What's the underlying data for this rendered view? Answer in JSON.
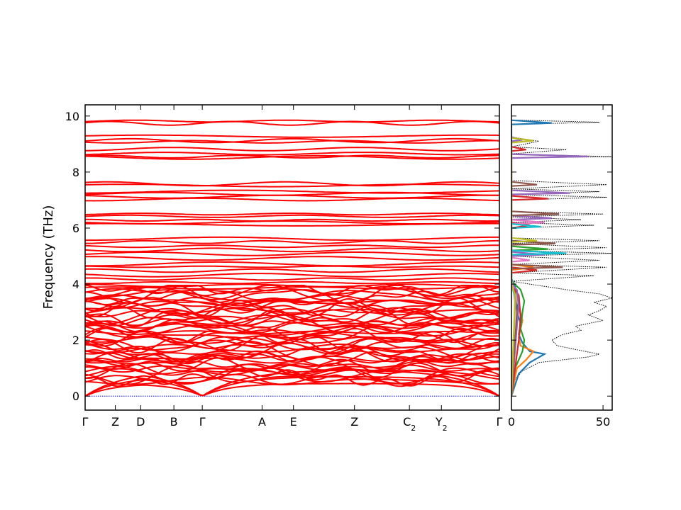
{
  "chart_data": [
    {
      "type": "line",
      "name": "phonon-band-structure",
      "ylabel": "Frequency (THz)",
      "xlabel": "",
      "ylim": [
        -0.5,
        10.4
      ],
      "yticks": [
        0,
        2,
        4,
        6,
        8,
        10
      ],
      "kpath": [
        {
          "label": "Γ",
          "sub": "",
          "x": 0.0
        },
        {
          "label": "Z",
          "sub": "",
          "x": 0.5
        },
        {
          "label": "D",
          "sub": "",
          "x": 0.92
        },
        {
          "label": "B",
          "sub": "",
          "x": 1.47
        },
        {
          "label": "Γ",
          "sub": "",
          "x": 1.94
        },
        {
          "label": "A",
          "sub": "",
          "x": 2.93
        },
        {
          "label": "E",
          "sub": "",
          "x": 3.45
        },
        {
          "label": "Z",
          "sub": "",
          "x": 4.46
        },
        {
          "label": "C",
          "sub": "2",
          "x": 5.37
        },
        {
          "label": "Y",
          "sub": "2",
          "x": 5.9
        },
        {
          "label": "Γ",
          "sub": "",
          "x": 6.86
        }
      ],
      "band_color": "#ff0000",
      "zero_line_color": "#0000ff",
      "flat_bands_thz": [
        9.82,
        9.74,
        9.28,
        9.12,
        9.08,
        8.82,
        8.66,
        8.55,
        8.52,
        7.58,
        7.52,
        7.3,
        7.22,
        7.12,
        7.02,
        6.5,
        6.42,
        6.28,
        6.2,
        6.12,
        5.62,
        5.5,
        5.35,
        5.22,
        5.08,
        4.92,
        4.72,
        4.62,
        4.48,
        4.32,
        4.18,
        4.05,
        3.95,
        3.86
      ],
      "dense_band_range_thz": [
        0.5,
        3.85
      ],
      "acoustic_branches": 3
    },
    {
      "type": "line",
      "name": "phonon-dos",
      "xlabel": "",
      "xlim": [
        0,
        55
      ],
      "xticks": [
        0,
        50
      ],
      "ylim": [
        -0.5,
        10.4
      ],
      "total_dos_style": "dotted-black",
      "total_dos": [
        [
          0.0,
          0
        ],
        [
          0.3,
          0.5
        ],
        [
          0.6,
          2
        ],
        [
          0.9,
          6
        ],
        [
          1.2,
          15
        ],
        [
          1.4,
          42
        ],
        [
          1.5,
          48
        ],
        [
          1.6,
          40
        ],
        [
          1.8,
          25
        ],
        [
          2.0,
          22
        ],
        [
          2.2,
          28
        ],
        [
          2.35,
          38
        ],
        [
          2.5,
          35
        ],
        [
          2.7,
          50
        ],
        [
          2.9,
          42
        ],
        [
          3.05,
          48
        ],
        [
          3.2,
          52
        ],
        [
          3.35,
          45
        ],
        [
          3.5,
          55
        ],
        [
          3.65,
          48
        ],
        [
          3.8,
          30
        ],
        [
          3.9,
          20
        ],
        [
          4.0,
          10
        ],
        [
          4.1,
          0
        ],
        [
          4.3,
          45
        ],
        [
          4.4,
          0
        ],
        [
          4.6,
          52
        ],
        [
          4.7,
          0
        ],
        [
          4.85,
          48
        ],
        [
          5.0,
          0
        ],
        [
          5.1,
          55
        ],
        [
          5.2,
          0
        ],
        [
          5.3,
          52
        ],
        [
          5.45,
          0
        ],
        [
          5.55,
          48
        ],
        [
          5.65,
          0
        ],
        [
          6.0,
          0
        ],
        [
          6.1,
          45
        ],
        [
          6.2,
          0
        ],
        [
          6.3,
          38
        ],
        [
          6.4,
          0
        ],
        [
          6.5,
          50
        ],
        [
          6.6,
          0
        ],
        [
          7.0,
          0
        ],
        [
          7.1,
          52
        ],
        [
          7.2,
          0
        ],
        [
          7.3,
          48
        ],
        [
          7.4,
          0
        ],
        [
          7.55,
          52
        ],
        [
          7.7,
          0
        ],
        [
          8.5,
          0
        ],
        [
          8.55,
          55
        ],
        [
          8.65,
          0
        ],
        [
          8.8,
          30
        ],
        [
          8.9,
          0
        ],
        [
          9.1,
          15
        ],
        [
          9.25,
          0
        ],
        [
          9.7,
          0
        ],
        [
          9.78,
          48
        ],
        [
          9.86,
          0
        ],
        [
          10.4,
          0
        ]
      ],
      "projections": [
        {
          "color": "#1f77b4",
          "points": [
            [
              0.0,
              0
            ],
            [
              0.8,
              4
            ],
            [
              1.2,
              10
            ],
            [
              1.5,
              18
            ],
            [
              1.6,
              10
            ],
            [
              1.9,
              6
            ],
            [
              2.2,
              4
            ],
            [
              2.6,
              5
            ],
            [
              3.0,
              3
            ],
            [
              3.5,
              4
            ],
            [
              3.9,
              2
            ],
            [
              4.2,
              0
            ],
            [
              9.7,
              0
            ],
            [
              9.75,
              22
            ],
            [
              9.85,
              0
            ]
          ]
        },
        {
          "color": "#ff7f0e",
          "points": [
            [
              0.0,
              0
            ],
            [
              1.0,
              3
            ],
            [
              1.3,
              8
            ],
            [
              1.6,
              12
            ],
            [
              1.8,
              5
            ],
            [
              2.1,
              4
            ],
            [
              2.7,
              6
            ],
            [
              3.2,
              4
            ],
            [
              3.7,
              3
            ],
            [
              4.0,
              0
            ],
            [
              4.5,
              0
            ],
            [
              4.6,
              12
            ],
            [
              4.7,
              0
            ]
          ]
        },
        {
          "color": "#2ca02c",
          "points": [
            [
              0.0,
              0
            ],
            [
              1.0,
              2
            ],
            [
              1.6,
              6
            ],
            [
              2.0,
              7
            ],
            [
              2.4,
              5
            ],
            [
              3.0,
              6
            ],
            [
              3.4,
              7
            ],
            [
              3.8,
              5
            ],
            [
              4.1,
              0
            ],
            [
              5.2,
              0
            ],
            [
              5.25,
              20
            ],
            [
              5.35,
              0
            ]
          ]
        },
        {
          "color": "#d62728",
          "points": [
            [
              0.0,
              0
            ],
            [
              1.5,
              3
            ],
            [
              2.0,
              4
            ],
            [
              2.8,
              5
            ],
            [
              3.6,
              4
            ],
            [
              4.0,
              0
            ],
            [
              4.4,
              0
            ],
            [
              4.5,
              14
            ],
            [
              4.6,
              0
            ],
            [
              6.0,
              0
            ],
            [
              6.1,
              10
            ],
            [
              6.2,
              0
            ],
            [
              7.0,
              0
            ],
            [
              7.05,
              20
            ],
            [
              7.15,
              0
            ],
            [
              8.75,
              0
            ],
            [
              8.8,
              8
            ],
            [
              8.9,
              0
            ]
          ]
        },
        {
          "color": "#9467bd",
          "points": [
            [
              0.0,
              0
            ],
            [
              2.5,
              3
            ],
            [
              3.2,
              4
            ],
            [
              3.8,
              3
            ],
            [
              4.0,
              0
            ],
            [
              5.0,
              0
            ],
            [
              5.05,
              18
            ],
            [
              5.15,
              0
            ],
            [
              6.3,
              0
            ],
            [
              6.35,
              22
            ],
            [
              6.45,
              0
            ],
            [
              7.2,
              0
            ],
            [
              7.25,
              32
            ],
            [
              7.35,
              0
            ],
            [
              8.5,
              0
            ],
            [
              8.56,
              42
            ],
            [
              8.64,
              0
            ],
            [
              9.1,
              0
            ],
            [
              9.15,
              6
            ],
            [
              9.25,
              0
            ]
          ]
        },
        {
          "color": "#8c564b",
          "points": [
            [
              0.0,
              0
            ],
            [
              3.0,
              3
            ],
            [
              3.7,
              2
            ],
            [
              4.0,
              0
            ],
            [
              4.55,
              0
            ],
            [
              4.6,
              28
            ],
            [
              4.7,
              0
            ],
            [
              5.4,
              0
            ],
            [
              5.45,
              24
            ],
            [
              5.55,
              0
            ],
            [
              6.45,
              0
            ],
            [
              6.5,
              26
            ],
            [
              6.6,
              0
            ],
            [
              7.5,
              0
            ],
            [
              7.55,
              14
            ],
            [
              7.65,
              0
            ]
          ]
        },
        {
          "color": "#e377c2",
          "points": [
            [
              0.0,
              0
            ],
            [
              3.3,
              2
            ],
            [
              3.9,
              1
            ],
            [
              4.1,
              0
            ],
            [
              4.8,
              0
            ],
            [
              4.85,
              10
            ],
            [
              4.95,
              0
            ],
            [
              6.15,
              0
            ],
            [
              6.2,
              18
            ],
            [
              6.3,
              0
            ]
          ]
        },
        {
          "color": "#17becf",
          "points": [
            [
              0.0,
              0
            ],
            [
              3.5,
              2
            ],
            [
              4.0,
              0
            ],
            [
              5.05,
              0
            ],
            [
              5.1,
              30
            ],
            [
              5.2,
              0
            ],
            [
              6.0,
              0
            ],
            [
              6.05,
              16
            ],
            [
              6.15,
              0
            ]
          ]
        },
        {
          "color": "#bcbd22",
          "points": [
            [
              0.0,
              0
            ],
            [
              3.6,
              2
            ],
            [
              4.0,
              0
            ],
            [
              5.5,
              0
            ],
            [
              5.55,
              14
            ],
            [
              5.65,
              0
            ],
            [
              9.05,
              0
            ],
            [
              9.12,
              12
            ],
            [
              9.22,
              0
            ]
          ]
        }
      ]
    }
  ]
}
